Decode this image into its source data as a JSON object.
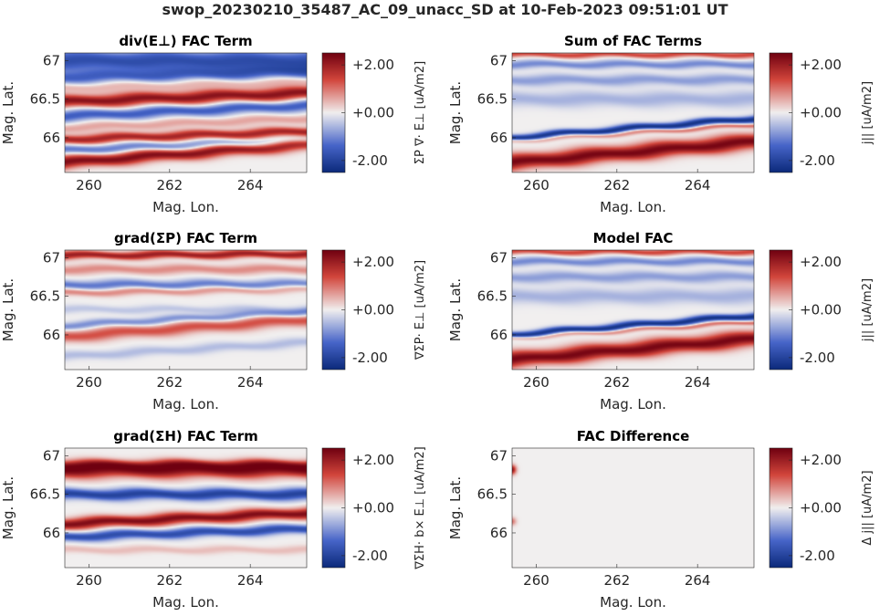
{
  "suptitle": "swop_20230210_35487_AC_09_unacc_SD at 10-Feb-2023 09:51:01 UT",
  "colors": {
    "neg": "#0b2a7a",
    "mid": "#f1efef",
    "pos": "#6f0010"
  },
  "chart_data": [
    {
      "type": "heatmap",
      "title": "div(E⊥) FAC Term",
      "xlabel": "Mag. Lon.",
      "ylabel": "Mag. Lat.",
      "xlim": [
        259.4,
        265.4
      ],
      "ylim": [
        65.55,
        67.1
      ],
      "xticks": [
        260,
        262,
        264
      ],
      "yticks": [
        66,
        66.5,
        67
      ],
      "xtick_labels": [
        "260",
        "262",
        "264"
      ],
      "ytick_labels": [
        "66",
        "66.5",
        "67"
      ],
      "clim": [
        -2.5,
        2.5
      ],
      "cbar_ticks": [
        2.0,
        0.0,
        -2.0
      ],
      "cbar_tick_labels": [
        "+2.00",
        "+0.00",
        "-2.00"
      ],
      "cbar_label": "ΣP ∇· E⊥ [uA/m2]",
      "bands": [
        {
          "lat0": 67.0,
          "lat1": 67.0,
          "value": -1.8,
          "width": 0.13
        },
        {
          "lat0": 66.78,
          "lat1": 66.85,
          "value": -1.4,
          "width": 0.09
        },
        {
          "lat0": 66.66,
          "lat1": 66.74,
          "value": 0.6,
          "width": 0.07
        },
        {
          "lat0": 66.47,
          "lat1": 66.58,
          "value": 2.2,
          "width": 0.08
        },
        {
          "lat0": 66.28,
          "lat1": 66.42,
          "value": -1.5,
          "width": 0.07
        },
        {
          "lat0": 66.13,
          "lat1": 66.25,
          "value": 0.6,
          "width": 0.06
        },
        {
          "lat0": 65.98,
          "lat1": 66.08,
          "value": 1.9,
          "width": 0.06
        },
        {
          "lat0": 65.84,
          "lat1": 65.96,
          "value": -1.2,
          "width": 0.06
        },
        {
          "lat0": 65.68,
          "lat1": 65.92,
          "value": 2.3,
          "width": 0.08
        }
      ]
    },
    {
      "type": "heatmap",
      "title": "Sum of FAC Terms",
      "xlabel": "Mag. Lon.",
      "ylabel": "Mag. Lat.",
      "xlim": [
        259.4,
        265.4
      ],
      "ylim": [
        65.55,
        67.1
      ],
      "xticks": [
        260,
        262,
        264
      ],
      "yticks": [
        66,
        66.5,
        67
      ],
      "xtick_labels": [
        "260",
        "262",
        "264"
      ],
      "ytick_labels": [
        "66",
        "66.5",
        "67"
      ],
      "clim": [
        -2.5,
        2.5
      ],
      "cbar_ticks": [
        2.0,
        0.0,
        -2.0
      ],
      "cbar_tick_labels": [
        "+2.00",
        "+0.00",
        "-2.00"
      ],
      "cbar_label": "j|| [uA/m2]",
      "bands": [
        {
          "lat0": 67.08,
          "lat1": 67.08,
          "value": 1.4,
          "width": 0.04
        },
        {
          "lat0": 66.95,
          "lat1": 66.95,
          "value": -1.0,
          "width": 0.05
        },
        {
          "lat0": 66.75,
          "lat1": 66.75,
          "value": -0.8,
          "width": 0.07
        },
        {
          "lat0": 66.5,
          "lat1": 66.5,
          "value": -0.6,
          "width": 0.1
        },
        {
          "lat0": 66.0,
          "lat1": 66.25,
          "value": -2.3,
          "width": 0.045
        },
        {
          "lat0": 65.96,
          "lat1": 66.17,
          "value": 1.1,
          "width": 0.03
        },
        {
          "lat0": 65.68,
          "lat1": 65.95,
          "value": 2.4,
          "width": 0.1
        }
      ]
    },
    {
      "type": "heatmap",
      "title": "grad(ΣP) FAC Term",
      "xlabel": "Mag. Lon.",
      "ylabel": "Mag. Lat.",
      "xlim": [
        259.4,
        265.4
      ],
      "ylim": [
        65.55,
        67.1
      ],
      "xticks": [
        260,
        262,
        264
      ],
      "yticks": [
        66,
        66.5,
        67
      ],
      "xtick_labels": [
        "260",
        "262",
        "264"
      ],
      "ytick_labels": [
        "66",
        "66.5",
        "67"
      ],
      "clim": [
        -2.5,
        2.5
      ],
      "cbar_ticks": [
        2.0,
        0.0,
        -2.0
      ],
      "cbar_tick_labels": [
        "+2.00",
        "+0.00",
        "-2.00"
      ],
      "cbar_label": "∇ΣP· E⊥ [uA/m2]",
      "bands": [
        {
          "lat0": 67.03,
          "lat1": 67.05,
          "value": 2.0,
          "width": 0.05
        },
        {
          "lat0": 66.85,
          "lat1": 66.85,
          "value": 0.8,
          "width": 0.06
        },
        {
          "lat0": 66.65,
          "lat1": 66.65,
          "value": -1.2,
          "width": 0.06
        },
        {
          "lat0": 66.55,
          "lat1": 66.6,
          "value": 0.9,
          "width": 0.05
        },
        {
          "lat0": 66.33,
          "lat1": 66.33,
          "value": -0.4,
          "width": 0.05
        },
        {
          "lat0": 66.12,
          "lat1": 66.3,
          "value": -1.0,
          "width": 0.05
        },
        {
          "lat0": 65.98,
          "lat1": 66.2,
          "value": 1.3,
          "width": 0.08
        },
        {
          "lat0": 65.72,
          "lat1": 65.9,
          "value": -0.5,
          "width": 0.06
        }
      ]
    },
    {
      "type": "heatmap",
      "title": "Model FAC",
      "xlabel": "Mag. Lon.",
      "ylabel": "Mag. Lat.",
      "xlim": [
        259.4,
        265.4
      ],
      "ylim": [
        65.55,
        67.1
      ],
      "xticks": [
        260,
        262,
        264
      ],
      "yticks": [
        66,
        66.5,
        67
      ],
      "xtick_labels": [
        "260",
        "262",
        "264"
      ],
      "ytick_labels": [
        "66",
        "66.5",
        "67"
      ],
      "clim": [
        -2.5,
        2.5
      ],
      "cbar_ticks": [
        2.0,
        0.0,
        -2.0
      ],
      "cbar_tick_labels": [
        "+2.00",
        "+0.00",
        "-2.00"
      ],
      "cbar_label": "j|| [uA/m2]",
      "bands": [
        {
          "lat0": 67.08,
          "lat1": 67.08,
          "value": 1.4,
          "width": 0.04
        },
        {
          "lat0": 66.95,
          "lat1": 66.95,
          "value": -1.0,
          "width": 0.05
        },
        {
          "lat0": 66.75,
          "lat1": 66.75,
          "value": -0.8,
          "width": 0.07
        },
        {
          "lat0": 66.5,
          "lat1": 66.5,
          "value": -0.6,
          "width": 0.1
        },
        {
          "lat0": 66.0,
          "lat1": 66.25,
          "value": -2.3,
          "width": 0.045
        },
        {
          "lat0": 65.96,
          "lat1": 66.17,
          "value": 1.1,
          "width": 0.03
        },
        {
          "lat0": 65.68,
          "lat1": 65.95,
          "value": 2.4,
          "width": 0.1
        }
      ]
    },
    {
      "type": "heatmap",
      "title": "grad(ΣH) FAC Term",
      "xlabel": "Mag. Lon.",
      "ylabel": "Mag. Lat.",
      "xlim": [
        259.4,
        265.4
      ],
      "ylim": [
        65.55,
        67.1
      ],
      "xticks": [
        260,
        262,
        264
      ],
      "yticks": [
        66,
        66.5,
        67
      ],
      "xtick_labels": [
        "260",
        "262",
        "264"
      ],
      "ytick_labels": [
        "66",
        "66.5",
        "67"
      ],
      "clim": [
        -2.5,
        2.5
      ],
      "cbar_ticks": [
        2.0,
        0.0,
        -2.0
      ],
      "cbar_tick_labels": [
        "+2.00",
        "+0.00",
        "-2.00"
      ],
      "cbar_label": "∇ΣH· b× E⊥ [uA/m2]",
      "bands": [
        {
          "lat0": 66.82,
          "lat1": 66.82,
          "value": 2.4,
          "width": 0.1
        },
        {
          "lat0": 66.9,
          "lat1": 66.9,
          "value": 0.9,
          "width": 0.05
        },
        {
          "lat0": 66.5,
          "lat1": 66.5,
          "value": -2.0,
          "width": 0.07
        },
        {
          "lat0": 66.12,
          "lat1": 66.26,
          "value": 2.3,
          "width": 0.07
        },
        {
          "lat0": 65.95,
          "lat1": 66.05,
          "value": -1.8,
          "width": 0.06
        },
        {
          "lat0": 65.78,
          "lat1": 65.78,
          "value": 0.4,
          "width": 0.05
        }
      ]
    },
    {
      "type": "heatmap",
      "title": "FAC Difference",
      "xlabel": "Mag. Lon.",
      "ylabel": "Mag. Lat.",
      "xlim": [
        259.4,
        265.4
      ],
      "ylim": [
        65.55,
        67.1
      ],
      "xticks": [
        260,
        262,
        264
      ],
      "yticks": [
        66,
        66.5,
        67
      ],
      "xtick_labels": [
        "260",
        "262",
        "264"
      ],
      "ytick_labels": [
        "66",
        "66.5",
        "67"
      ],
      "clim": [
        -2.5,
        2.5
      ],
      "cbar_ticks": [
        2.0,
        0.0,
        -2.0
      ],
      "cbar_tick_labels": [
        "+2.00",
        "+0.00",
        "-2.00"
      ],
      "cbar_label": "Δ j|| [uA/m2]",
      "bands": [
        {
          "lat0": 66.82,
          "lat1": 66.82,
          "value": 2.2,
          "width": 0.06,
          "edge": true
        },
        {
          "lat0": 66.15,
          "lat1": 66.15,
          "value": 1.0,
          "width": 0.05,
          "edge": true
        }
      ]
    }
  ]
}
